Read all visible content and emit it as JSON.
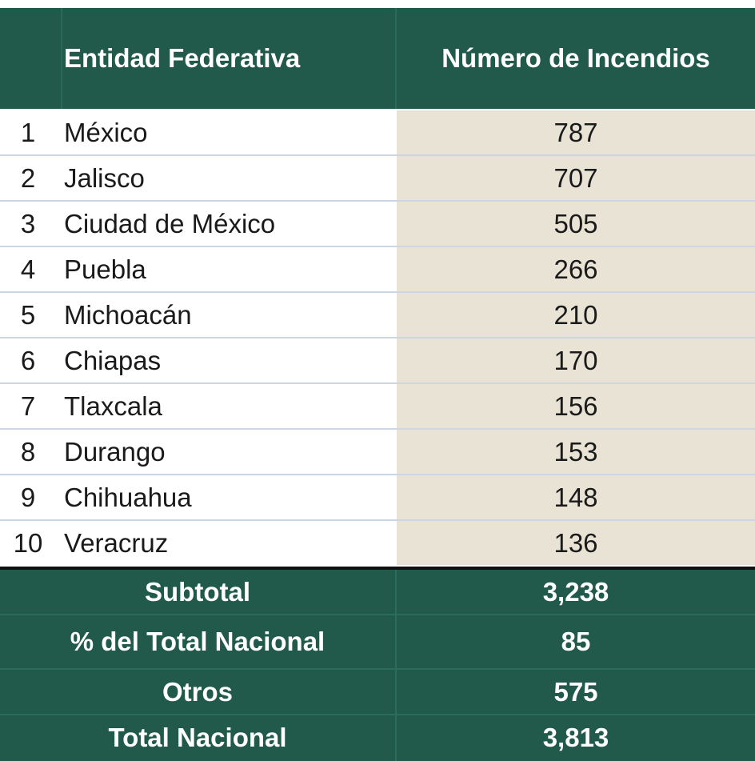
{
  "table": {
    "headers": {
      "rank": "",
      "entity": "Entidad Federativa",
      "count": "Número de Incendios"
    },
    "rows": [
      {
        "rank": "1",
        "entity": "México",
        "count": "787"
      },
      {
        "rank": "2",
        "entity": "Jalisco",
        "count": "707"
      },
      {
        "rank": "3",
        "entity": "Ciudad de México",
        "count": "505"
      },
      {
        "rank": "4",
        "entity": "Puebla",
        "count": "266"
      },
      {
        "rank": "5",
        "entity": "Michoacán",
        "count": "210"
      },
      {
        "rank": "6",
        "entity": "Chiapas",
        "count": "170"
      },
      {
        "rank": "7",
        "entity": "Tlaxcala",
        "count": "156"
      },
      {
        "rank": "8",
        "entity": "Durango",
        "count": "153"
      },
      {
        "rank": "9",
        "entity": "Chihuahua",
        "count": "148"
      },
      {
        "rank": "10",
        "entity": "Veracruz",
        "count": "136"
      }
    ],
    "footer": [
      {
        "label": "Subtotal",
        "value": "3,238"
      },
      {
        "label": "% del Total Nacional",
        "value": "85"
      },
      {
        "label": "Otros",
        "value": "575"
      },
      {
        "label": "Total Nacional",
        "value": "3,813"
      }
    ]
  },
  "colors": {
    "header_bg": "#215a4b",
    "count_column_bg": "#e9e3d6",
    "row_separator": "#cdd6e4"
  }
}
